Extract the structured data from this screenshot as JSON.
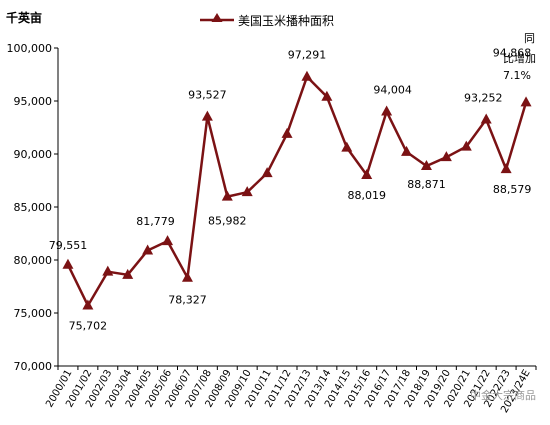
{
  "chart_data": {
    "type": "line",
    "unit_label": "千英亩",
    "legend": "美国玉米播种面积",
    "color": "#7b1214",
    "ylim": [
      70000,
      100000
    ],
    "yticks": [
      "70,000",
      "75,000",
      "80,000",
      "85,000",
      "90,000",
      "95,000",
      "100,000"
    ],
    "ytick_values": [
      70000,
      75000,
      80000,
      85000,
      90000,
      95000,
      100000
    ],
    "categories": [
      "2000/01",
      "2001/02",
      "2002/03",
      "2003/04",
      "2004/05",
      "2005/06",
      "2006/07",
      "2007/08",
      "2008/09",
      "2009/10",
      "2010/11",
      "2011/12",
      "2012/13",
      "2013/14",
      "2014/15",
      "2015/16",
      "2016/17",
      "2017/18",
      "2018/19",
      "2019/20",
      "2020/21",
      "2021/22",
      "2022/23",
      "2023/24E"
    ],
    "series": [
      {
        "values": [
          79551,
          75702,
          78900,
          78600,
          80900,
          81779,
          78327,
          93527,
          85982,
          86400,
          88200,
          91900,
          97291,
          95400,
          90600,
          88019,
          94004,
          90200,
          88871,
          89700,
          90700,
          93252,
          88579,
          94868
        ]
      }
    ],
    "data_labels": [
      {
        "index": 0,
        "text": "79,551"
      },
      {
        "index": 1,
        "text": "75,702"
      },
      {
        "index": 5,
        "text": "81,779"
      },
      {
        "index": 6,
        "text": "78,327"
      },
      {
        "index": 7,
        "text": "93,527"
      },
      {
        "index": 8,
        "text": "85,982"
      },
      {
        "index": 12,
        "text": "97,291"
      },
      {
        "index": 15,
        "text": "88,019"
      },
      {
        "index": 16,
        "text": "94,004"
      },
      {
        "index": 18,
        "text": "88,871"
      },
      {
        "index": 21,
        "text": "93,252"
      },
      {
        "index": 22,
        "text": "88,579"
      },
      {
        "index": 23,
        "text": "94,868"
      }
    ],
    "annotations": [
      "同",
      "比增加",
      "7.1%"
    ],
    "watermark": "中金大宗商品"
  }
}
